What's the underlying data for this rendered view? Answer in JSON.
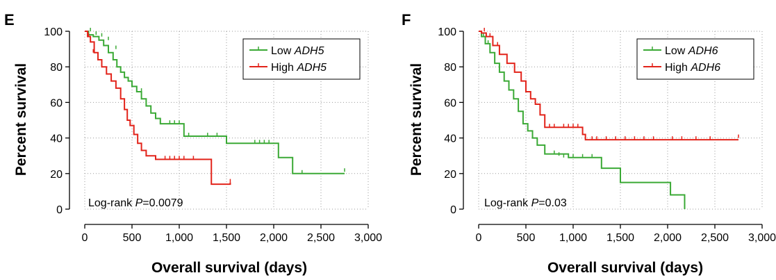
{
  "chart_data": [
    {
      "panel": "E",
      "type": "line",
      "xlabel": "Overall survival (days)",
      "ylabel": "Percent survival",
      "xlim": [
        0,
        3000
      ],
      "ylim": [
        0,
        100
      ],
      "xticks": [
        "0",
        "500",
        "1,000",
        "1,500",
        "2,000",
        "2,500",
        "3,000"
      ],
      "yticks": [
        "0",
        "20",
        "40",
        "60",
        "80",
        "100"
      ],
      "grid": true,
      "legend_position": "top-right",
      "annotation": {
        "prefix": "Log-rank ",
        "p": "P",
        "suffix": "=0.0079"
      },
      "series": [
        {
          "name_prefix": "Low ",
          "name_gene": "ADH5",
          "color": "#3aa935",
          "x": [
            0,
            40,
            90,
            150,
            200,
            250,
            300,
            340,
            380,
            420,
            460,
            500,
            550,
            600,
            650,
            700,
            750,
            800,
            1050,
            1500,
            2050,
            2200,
            2750
          ],
          "y": [
            100,
            98,
            97,
            95,
            92,
            88,
            84,
            80,
            77,
            74,
            72,
            69,
            66,
            62,
            58,
            54,
            51,
            48,
            41,
            37,
            29,
            20,
            20
          ],
          "censored_x": [
            60,
            120,
            180,
            250,
            330,
            600,
            900,
            950,
            1000,
            1100,
            1300,
            1400,
            1800,
            1850,
            1900,
            1950,
            2300,
            2750
          ],
          "censored_y": [
            100,
            98,
            97,
            95,
            90,
            66,
            48,
            48,
            48,
            41,
            41,
            41,
            37,
            37,
            37,
            37,
            20,
            21
          ]
        },
        {
          "name_prefix": "High ",
          "name_gene": "ADH5",
          "color": "#e2231a",
          "x": [
            0,
            30,
            60,
            100,
            140,
            180,
            230,
            280,
            330,
            380,
            420,
            450,
            480,
            520,
            560,
            600,
            650,
            750,
            1340,
            1540
          ],
          "y": [
            100,
            97,
            94,
            88,
            84,
            80,
            76,
            72,
            68,
            62,
            56,
            50,
            47,
            42,
            37,
            33,
            30,
            28,
            14,
            15
          ],
          "censored_x": [
            40,
            90,
            650,
            850,
            900,
            950,
            1000,
            1050,
            1150,
            1540
          ],
          "censored_y": [
            97,
            88,
            30,
            28,
            28,
            28,
            28,
            28,
            28,
            15
          ]
        }
      ]
    },
    {
      "panel": "F",
      "type": "line",
      "xlabel": "Overall survival (days)",
      "ylabel": "Percent survival",
      "xlim": [
        0,
        3000
      ],
      "ylim": [
        0,
        100
      ],
      "xticks": [
        "0",
        "500",
        "1,000",
        "1,500",
        "2,000",
        "2,500",
        "3,000"
      ],
      "yticks": [
        "0",
        "20",
        "40",
        "60",
        "80",
        "100"
      ],
      "grid": true,
      "legend_position": "top-right",
      "annotation": {
        "prefix": "Log-rank ",
        "p": "P",
        "suffix": "=0.03"
      },
      "series": [
        {
          "name_prefix": "Low ",
          "name_gene": "ADH6",
          "color": "#3aa935",
          "x": [
            0,
            30,
            70,
            120,
            170,
            220,
            270,
            320,
            370,
            420,
            470,
            520,
            570,
            620,
            700,
            950,
            1300,
            1500,
            2030,
            2180
          ],
          "y": [
            100,
            97,
            93,
            88,
            82,
            77,
            72,
            67,
            62,
            55,
            48,
            44,
            40,
            36,
            31,
            29,
            23,
            15,
            8,
            0
          ],
          "censored_x": [
            50,
            100,
            800,
            850,
            900,
            1000,
            1100,
            1200
          ],
          "censored_y": [
            97,
            93,
            31,
            30,
            29,
            29,
            29,
            29
          ]
        },
        {
          "name_prefix": "High ",
          "name_gene": "ADH6",
          "color": "#e2231a",
          "x": [
            0,
            30,
            80,
            150,
            220,
            300,
            380,
            450,
            500,
            550,
            600,
            650,
            700,
            1100,
            1130,
            2750
          ],
          "y": [
            100,
            99,
            97,
            92,
            87,
            82,
            77,
            72,
            66,
            62,
            59,
            53,
            46,
            42,
            39,
            39
          ],
          "censored_x": [
            60,
            120,
            200,
            750,
            800,
            900,
            950,
            1000,
            1050,
            1200,
            1250,
            1350,
            1450,
            1550,
            1650,
            1750,
            1850,
            2050,
            2150,
            2300,
            2450,
            2750
          ],
          "censored_y": [
            100,
            97,
            92,
            46,
            46,
            46,
            46,
            46,
            46,
            39,
            39,
            39,
            39,
            39,
            39,
            39,
            39,
            39,
            39,
            39,
            39,
            40
          ]
        }
      ]
    }
  ]
}
